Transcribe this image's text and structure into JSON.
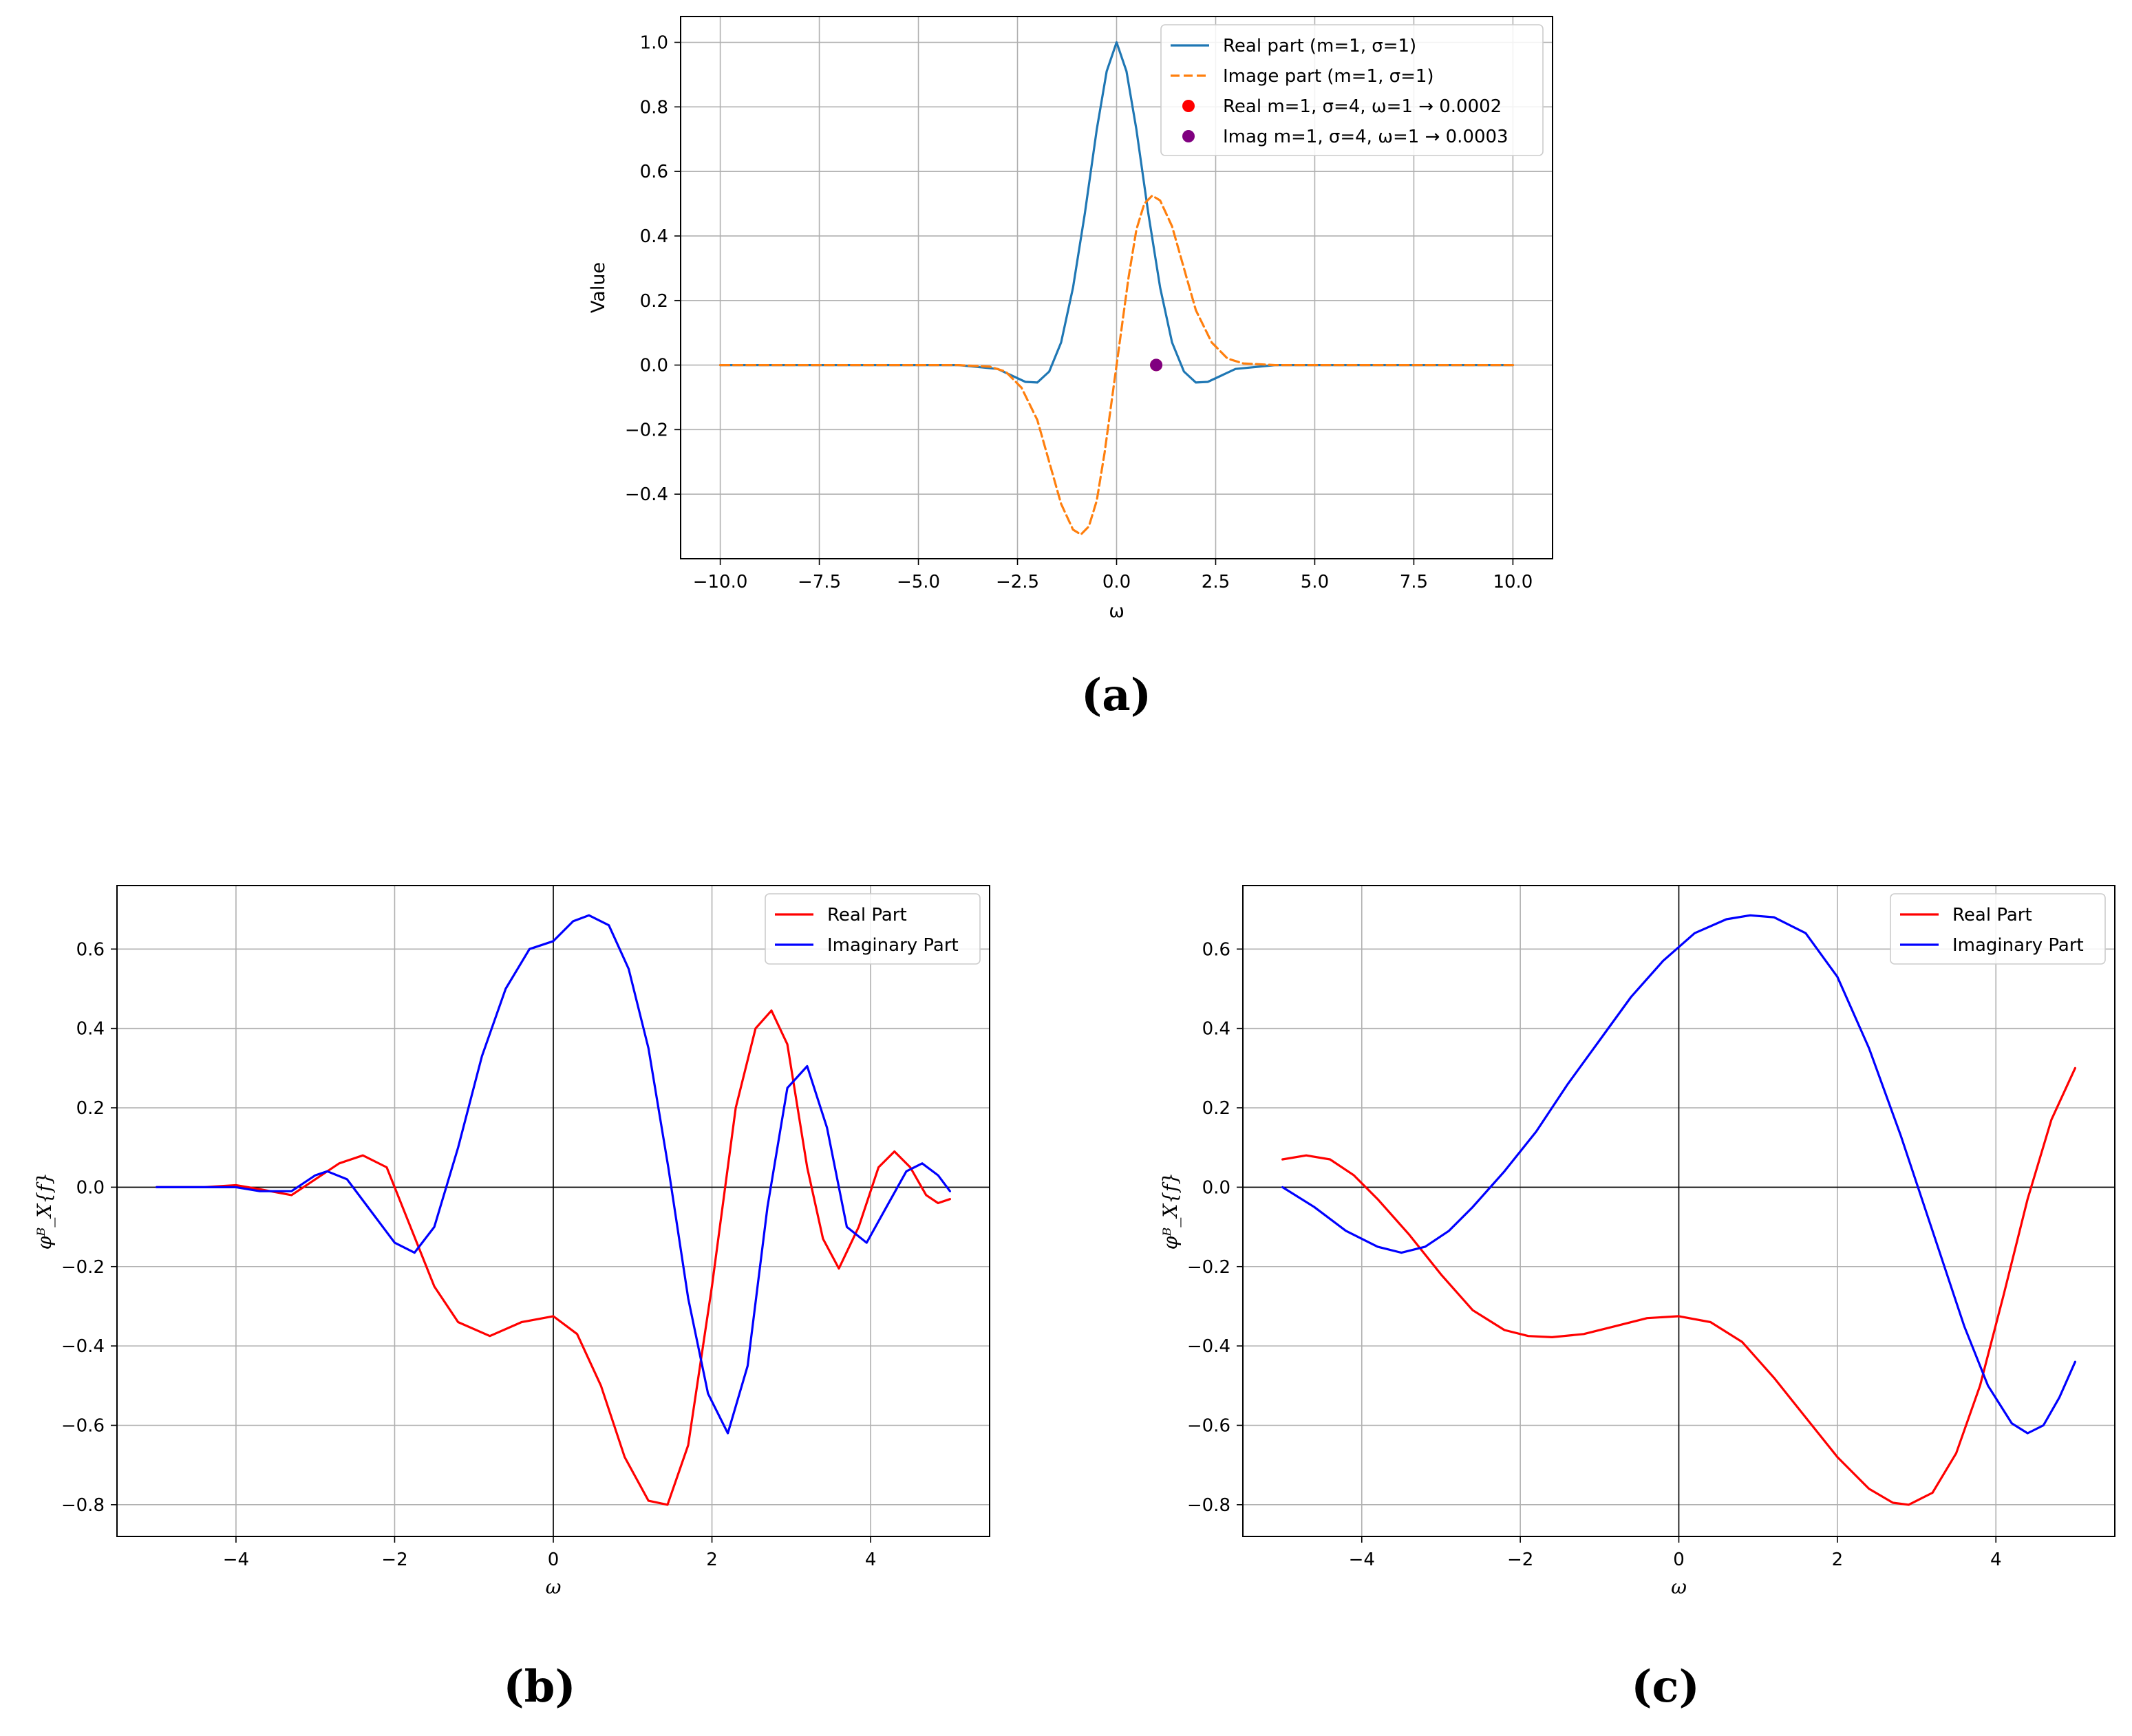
{
  "chart_data": [
    {
      "panel": "a",
      "caption": "(a)",
      "type": "line",
      "xlabel": "ω",
      "ylabel": "Value",
      "xlim": [
        -11,
        11
      ],
      "ylim": [
        -0.6,
        1.08
      ],
      "xticks": [
        -10.0,
        -7.5,
        -5.0,
        -2.5,
        0.0,
        2.5,
        5.0,
        7.5,
        10.0
      ],
      "xtick_labels": [
        "−10.0",
        "−7.5",
        "−5.0",
        "−2.5",
        "0.0",
        "2.5",
        "5.0",
        "7.5",
        "10.0"
      ],
      "yticks": [
        -0.4,
        -0.2,
        0.0,
        0.2,
        0.4,
        0.6,
        0.8,
        1.0
      ],
      "ytick_labels": [
        "−0.4",
        "−0.2",
        "0.0",
        "0.2",
        "0.4",
        "0.6",
        "0.8",
        "1.0"
      ],
      "grid": true,
      "legend": "top-right",
      "series": [
        {
          "name": "Real part (m=1, σ=1)",
          "style": "solid",
          "color": "#1f77b4",
          "x": [
            -10,
            -4,
            -3,
            -2.6,
            -2.3,
            -2.0,
            -1.7,
            -1.4,
            -1.1,
            -0.8,
            -0.5,
            -0.25,
            0,
            0.25,
            0.5,
            0.8,
            1.1,
            1.4,
            1.7,
            2.0,
            2.3,
            2.6,
            3,
            4,
            10
          ],
          "y": [
            0,
            0,
            -0.012,
            -0.035,
            -0.052,
            -0.054,
            -0.02,
            0.07,
            0.24,
            0.47,
            0.73,
            0.91,
            1.0,
            0.91,
            0.73,
            0.47,
            0.24,
            0.07,
            -0.02,
            -0.054,
            -0.052,
            -0.035,
            -0.012,
            0,
            0
          ]
        },
        {
          "name": "Image part (m=1, σ=1)",
          "style": "dashed",
          "color": "#ff7f0e",
          "x": [
            -10,
            -4,
            -3.2,
            -2.8,
            -2.4,
            -2.0,
            -1.7,
            -1.4,
            -1.1,
            -0.9,
            -0.7,
            -0.5,
            -0.3,
            0,
            0.3,
            0.5,
            0.7,
            0.9,
            1.1,
            1.4,
            1.7,
            2.0,
            2.4,
            2.8,
            3.2,
            4,
            10
          ],
          "y": [
            0,
            0,
            -0.005,
            -0.02,
            -0.07,
            -0.17,
            -0.3,
            -0.43,
            -0.51,
            -0.525,
            -0.5,
            -0.42,
            -0.27,
            0,
            0.27,
            0.42,
            0.5,
            0.525,
            0.51,
            0.43,
            0.3,
            0.17,
            0.07,
            0.02,
            0.005,
            0,
            0
          ]
        },
        {
          "name": "Real m=1, σ=4, ω=1 → 0.0002",
          "style": "marker",
          "color": "#ff0000",
          "x": [
            1
          ],
          "y": [
            0.0002
          ]
        },
        {
          "name": "Imag m=1, σ=4, ω=1 → 0.0003",
          "style": "marker",
          "color": "#800080",
          "x": [
            1
          ],
          "y": [
            0.0003
          ]
        }
      ]
    },
    {
      "panel": "b",
      "caption": "(b)",
      "type": "line",
      "xlabel": "ω",
      "ylabel": "φᴮ_X{f}",
      "xlim": [
        -5.5,
        5.5
      ],
      "ylim": [
        -0.88,
        0.76
      ],
      "xticks": [
        -4,
        -2,
        0,
        2,
        4
      ],
      "xtick_labels": [
        "−4",
        "−2",
        "0",
        "2",
        "4"
      ],
      "yticks": [
        -0.8,
        -0.6,
        -0.4,
        -0.2,
        0.0,
        0.2,
        0.4,
        0.6
      ],
      "ytick_labels": [
        "−0.8",
        "−0.6",
        "−0.4",
        "−0.2",
        "0.0",
        "0.2",
        "0.4",
        "0.6"
      ],
      "grid": true,
      "legend": "top-right",
      "series": [
        {
          "name": "Real Part",
          "color": "#ff0000",
          "x": [
            -5,
            -4.4,
            -4.0,
            -3.7,
            -3.3,
            -3.0,
            -2.7,
            -2.4,
            -2.1,
            -1.8,
            -1.5,
            -1.2,
            -0.8,
            -0.4,
            0,
            0.3,
            0.6,
            0.9,
            1.2,
            1.44,
            1.7,
            2.0,
            2.3,
            2.55,
            2.75,
            2.95,
            3.2,
            3.4,
            3.6,
            3.85,
            4.1,
            4.3,
            4.5,
            4.7,
            4.85,
            5
          ],
          "y": [
            0,
            0,
            0.005,
            -0.005,
            -0.02,
            0.02,
            0.06,
            0.08,
            0.05,
            -0.1,
            -0.25,
            -0.34,
            -0.375,
            -0.34,
            -0.325,
            -0.37,
            -0.5,
            -0.68,
            -0.79,
            -0.8,
            -0.65,
            -0.25,
            0.2,
            0.4,
            0.445,
            0.36,
            0.05,
            -0.13,
            -0.205,
            -0.1,
            0.05,
            0.09,
            0.05,
            -0.02,
            -0.04,
            -0.03
          ]
        },
        {
          "name": "Imaginary Part",
          "color": "#0000ff",
          "x": [
            -5,
            -4.4,
            -4.0,
            -3.7,
            -3.3,
            -3.0,
            -2.85,
            -2.6,
            -2.3,
            -2.0,
            -1.75,
            -1.5,
            -1.2,
            -0.9,
            -0.6,
            -0.3,
            0,
            0.25,
            0.45,
            0.7,
            0.95,
            1.2,
            1.45,
            1.7,
            1.95,
            2.2,
            2.45,
            2.7,
            2.95,
            3.2,
            3.45,
            3.7,
            3.95,
            4.2,
            4.45,
            4.65,
            4.85,
            5
          ],
          "y": [
            0,
            0,
            0.0,
            -0.01,
            -0.01,
            0.03,
            0.04,
            0.02,
            -0.06,
            -0.14,
            -0.165,
            -0.1,
            0.1,
            0.33,
            0.5,
            0.6,
            0.62,
            0.67,
            0.685,
            0.66,
            0.55,
            0.35,
            0.05,
            -0.28,
            -0.52,
            -0.62,
            -0.45,
            -0.05,
            0.25,
            0.305,
            0.15,
            -0.1,
            -0.14,
            -0.05,
            0.04,
            0.06,
            0.03,
            -0.01
          ]
        }
      ]
    },
    {
      "panel": "c",
      "caption": "(c)",
      "type": "line",
      "xlabel": "ω",
      "ylabel": "φᴮ_X{f}",
      "xlim": [
        -5.5,
        5.5
      ],
      "ylim": [
        -0.88,
        0.76
      ],
      "xticks": [
        -4,
        -2,
        0,
        2,
        4
      ],
      "xtick_labels": [
        "−4",
        "−2",
        "0",
        "2",
        "4"
      ],
      "yticks": [
        -0.8,
        -0.6,
        -0.4,
        -0.2,
        0.0,
        0.2,
        0.4,
        0.6
      ],
      "ytick_labels": [
        "−0.8",
        "−0.6",
        "−0.4",
        "−0.2",
        "0.0",
        "0.2",
        "0.4",
        "0.6"
      ],
      "grid": true,
      "legend": "top-right",
      "series": [
        {
          "name": "Real Part",
          "color": "#ff0000",
          "x": [
            -5,
            -4.7,
            -4.4,
            -4.1,
            -3.8,
            -3.4,
            -3.0,
            -2.6,
            -2.2,
            -1.9,
            -1.6,
            -1.2,
            -0.8,
            -0.4,
            0,
            0.4,
            0.8,
            1.2,
            1.6,
            2.0,
            2.4,
            2.7,
            2.9,
            3.2,
            3.5,
            3.8,
            4.1,
            4.4,
            4.7,
            5.0
          ],
          "y": [
            0.07,
            0.08,
            0.07,
            0.03,
            -0.03,
            -0.12,
            -0.22,
            -0.31,
            -0.36,
            -0.375,
            -0.378,
            -0.37,
            -0.35,
            -0.33,
            -0.325,
            -0.34,
            -0.39,
            -0.48,
            -0.58,
            -0.68,
            -0.76,
            -0.795,
            -0.8,
            -0.77,
            -0.67,
            -0.5,
            -0.27,
            -0.03,
            0.17,
            0.3
          ]
        },
        {
          "name": "Imaginary Part",
          "color": "#0000ff",
          "x": [
            -5,
            -4.6,
            -4.2,
            -3.8,
            -3.5,
            -3.2,
            -2.9,
            -2.6,
            -2.2,
            -1.8,
            -1.4,
            -1.0,
            -0.6,
            -0.2,
            0.2,
            0.6,
            0.9,
            1.2,
            1.6,
            2.0,
            2.4,
            2.8,
            3.2,
            3.6,
            3.9,
            4.2,
            4.4,
            4.6,
            4.8,
            5.0
          ],
          "y": [
            0.0,
            -0.05,
            -0.11,
            -0.15,
            -0.165,
            -0.15,
            -0.11,
            -0.05,
            0.04,
            0.14,
            0.26,
            0.37,
            0.48,
            0.57,
            0.64,
            0.675,
            0.685,
            0.68,
            0.64,
            0.53,
            0.35,
            0.13,
            -0.11,
            -0.35,
            -0.5,
            -0.595,
            -0.62,
            -0.6,
            -0.53,
            -0.44
          ]
        }
      ]
    }
  ]
}
